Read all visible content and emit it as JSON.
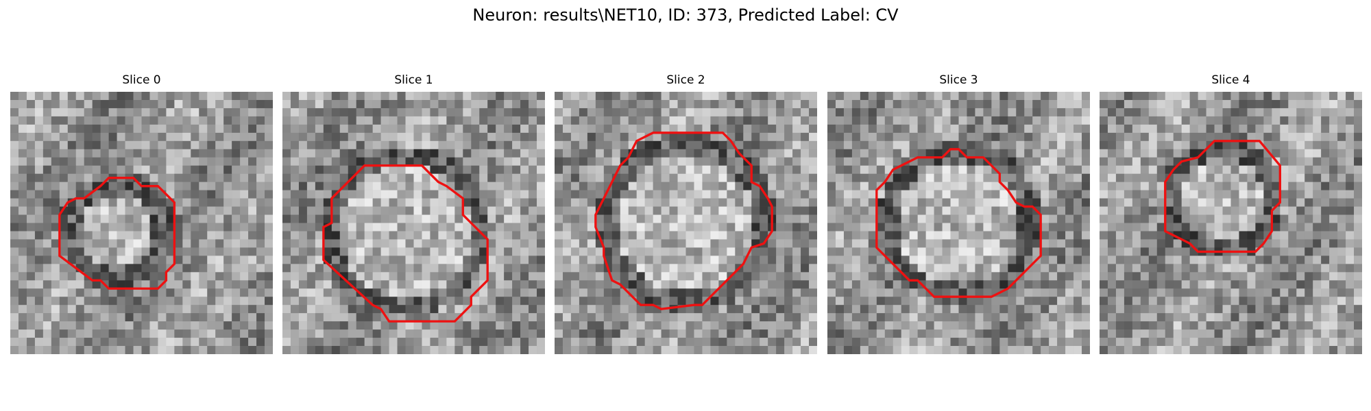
{
  "figure": {
    "title": "Neuron: results\\NET10, ID: 373, Predicted Label: CV"
  },
  "slices": [
    {
      "title": "Slice 0",
      "contour_color": "#ee1111"
    },
    {
      "title": "Slice 1",
      "contour_color": "#ee1111"
    },
    {
      "title": "Slice 2",
      "contour_color": "#ee1111"
    },
    {
      "title": "Slice 3",
      "contour_color": "#ee1111"
    },
    {
      "title": "Slice 4",
      "contour_color": "#ee1111"
    }
  ]
}
